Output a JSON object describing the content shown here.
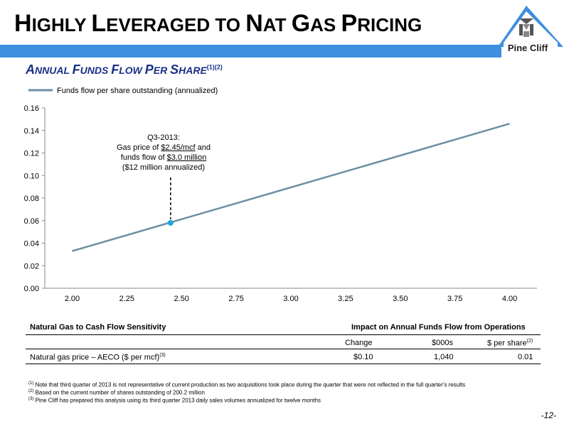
{
  "header": {
    "title_parts": [
      {
        "t": "H",
        "big": true
      },
      {
        "t": "IGHLY ",
        "big": false
      },
      {
        "t": "L",
        "big": true
      },
      {
        "t": "EVERAGED TO ",
        "big": false
      },
      {
        "t": "N",
        "big": true
      },
      {
        "t": "AT ",
        "big": false
      },
      {
        "t": "G",
        "big": true
      },
      {
        "t": "AS ",
        "big": false
      },
      {
        "t": "P",
        "big": true
      },
      {
        "t": "RICING",
        "big": false
      }
    ],
    "logo_text": "Pine Cliff",
    "accent_color": "#3d8fe0",
    "subtitle_parts": [
      {
        "t": "A",
        "big": true
      },
      {
        "t": "NNUAL ",
        "big": false
      },
      {
        "t": "F",
        "big": true
      },
      {
        "t": "UNDS ",
        "big": false
      },
      {
        "t": "F",
        "big": true
      },
      {
        "t": "LOW ",
        "big": false
      },
      {
        "t": "P",
        "big": true
      },
      {
        "t": "ER ",
        "big": false
      },
      {
        "t": "S",
        "big": true
      },
      {
        "t": "HARE",
        "big": false
      }
    ],
    "subtitle_sup": "(1)(2)",
    "subtitle_color": "#1b2f86"
  },
  "chart_data": {
    "type": "line",
    "legend": "top-left",
    "series": [
      {
        "name": "Funds flow per share outstanding (annualized)",
        "color": "#6b8fa3",
        "x": [
          2.0,
          4.0
        ],
        "y": [
          0.033,
          0.146
        ]
      }
    ],
    "x_ticks": [
      "2.00",
      "2.25",
      "2.50",
      "2.75",
      "3.00",
      "3.25",
      "3.50",
      "3.75",
      "4.00"
    ],
    "y_ticks": [
      "0.00",
      "0.02",
      "0.04",
      "0.06",
      "0.08",
      "0.10",
      "0.12",
      "0.14",
      "0.16"
    ],
    "xlim": [
      1.875,
      4.125
    ],
    "ylim": [
      0,
      0.16
    ],
    "grid": false,
    "highlight_point": {
      "x": 2.45,
      "y": 0.058,
      "color": "#1aa7dc"
    },
    "annotation": {
      "line1": "Q3-2013:",
      "line2_pre": "Gas price of ",
      "line2_u": "$2.45/mcf",
      "line2_post": " and",
      "line3_pre": "funds flow of ",
      "line3_u": "$3.0 million",
      "line4": "($12 million annualized)"
    }
  },
  "table": {
    "title": "Natural Gas to Cash Flow Sensitivity",
    "group_header": "Impact on Annual Funds Flow from Operations",
    "columns": [
      "Change",
      "$000s",
      "$ per share"
    ],
    "col3_sup": "(2)",
    "row": {
      "label": "Natural gas price – AECO ($ per mcf)",
      "label_sup": "(3)",
      "values": [
        "$0.10",
        "1,040",
        "0.01"
      ]
    }
  },
  "footnotes": [
    {
      "sup": "(1)",
      "text": " Note that third quarter of 2013 is not representative of current production as two acquisitions took place during the quarter that were not reflected in the full quarter's results"
    },
    {
      "sup": "(2)",
      "text": " Based on the current number of shares outstanding of 200.2 million"
    },
    {
      "sup": "(3)",
      "text": " Pine Cliff has prepared this analysis using its third quarter 2013 daily sales volumes annualized for twelve months"
    }
  ],
  "page_number": "-12-"
}
